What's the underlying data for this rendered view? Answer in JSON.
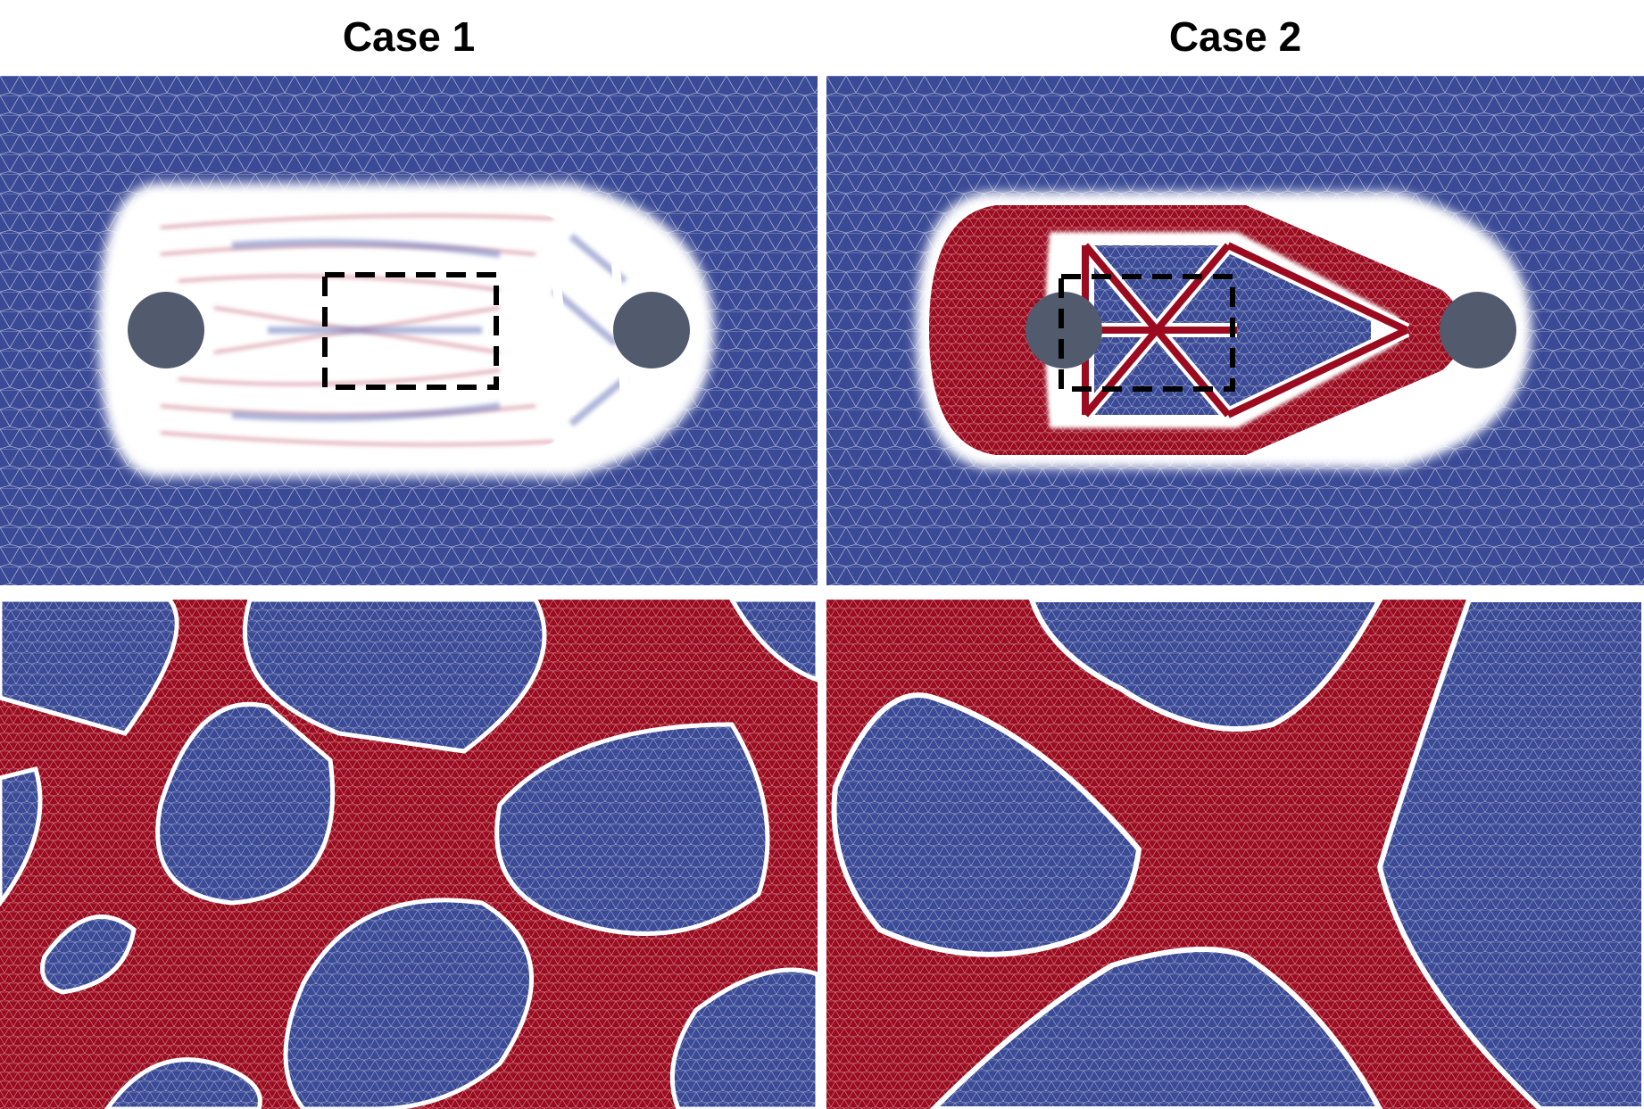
{
  "titles": {
    "case1": "Case 1",
    "case2": "Case 2"
  },
  "colors": {
    "void": "#3a4a96",
    "solid": "#9b0a1e",
    "interface": "#ffffff",
    "support": "#525a6e",
    "zoom_box": "#000000",
    "mesh_line": "#ffffff"
  },
  "panels": [
    {
      "id": "case1-overview",
      "label": "",
      "content": "topology-mesh-overview"
    },
    {
      "id": "case2-overview",
      "label": "",
      "content": "topology-mesh-overview"
    },
    {
      "id": "case1-zoom",
      "label": "",
      "content": "topology-mesh-zoom"
    },
    {
      "id": "case2-zoom",
      "label": "",
      "content": "topology-mesh-zoom"
    }
  ]
}
